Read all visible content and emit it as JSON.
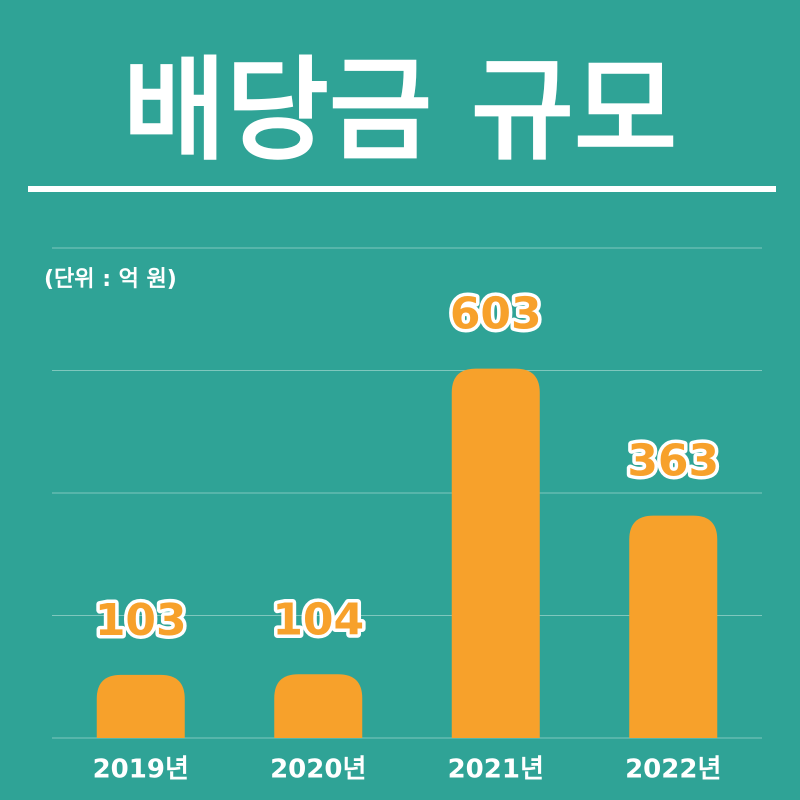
{
  "chart_data": {
    "type": "bar",
    "title": "배당금 규모",
    "subtitle": "(단위 : 억 원)",
    "categories": [
      "2019년",
      "2020년",
      "2021년",
      "2022년"
    ],
    "values": [
      103,
      104,
      603,
      363
    ],
    "color": "#f7a12b",
    "ylim": [
      0,
      800
    ],
    "yticks": [
      0,
      200,
      400,
      600,
      800
    ],
    "grid": true
  }
}
